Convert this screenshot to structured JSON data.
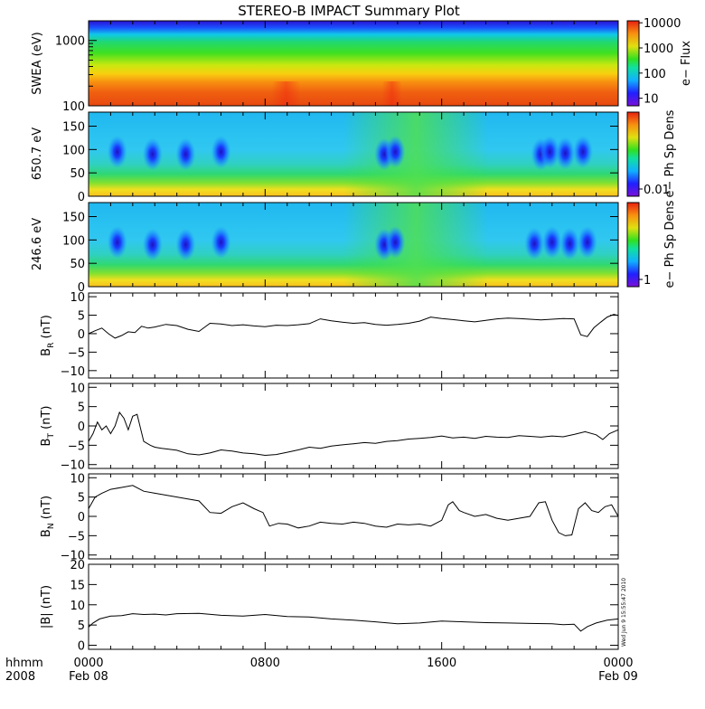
{
  "chart_data": [
    {
      "id": "swea",
      "type": "heatmap",
      "title": "STEREO-B IMPACT Summary Plot",
      "ylabel": "SWEA (eV)",
      "yscale": "log",
      "ylim": [
        100,
        2000
      ],
      "yticks": [
        {
          "v": 100,
          "label": "100"
        },
        {
          "v": 1000,
          "label": "1000"
        }
      ],
      "colorbar": {
        "label": "e− Flux",
        "scale": "log",
        "range": [
          5,
          12000
        ],
        "ticks": [
          {
            "v": 10000,
            "label": "10000"
          },
          {
            "v": 1000,
            "label": "1000"
          },
          {
            "v": 100,
            "label": "100"
          },
          {
            "v": 10,
            "label": "10"
          }
        ]
      },
      "hot_bands": [
        [
          8.3,
          9.6
        ],
        [
          13.3,
          14.2
        ]
      ]
    },
    {
      "id": "pad650",
      "type": "heatmap",
      "ylabel": "650.7 eV",
      "ylim": [
        0,
        180
      ],
      "yticks": [
        {
          "v": 0,
          "label": "0"
        },
        {
          "v": 50,
          "label": "50"
        },
        {
          "v": 100,
          "label": "100"
        },
        {
          "v": 150,
          "label": "150"
        }
      ],
      "colorbar": {
        "label": "e− Ph Sp Dens",
        "ticks": [
          {
            "v": 0.01,
            "label": "0.01"
          }
        ]
      },
      "blue_blobs": [
        [
          1.3,
          95
        ],
        [
          2.9,
          90
        ],
        [
          4.4,
          90
        ],
        [
          6.0,
          95
        ],
        [
          13.4,
          90
        ],
        [
          13.9,
          95
        ],
        [
          20.5,
          90
        ],
        [
          20.9,
          95
        ],
        [
          21.6,
          92
        ],
        [
          22.4,
          95
        ]
      ]
    },
    {
      "id": "pad246",
      "type": "heatmap",
      "ylabel": "246.6 eV",
      "ylim": [
        0,
        180
      ],
      "yticks": [
        {
          "v": 0,
          "label": "0"
        },
        {
          "v": 50,
          "label": "50"
        },
        {
          "v": 100,
          "label": "100"
        },
        {
          "v": 150,
          "label": "150"
        }
      ],
      "colorbar": {
        "label": "e− Ph Sp Dens",
        "ticks": [
          {
            "v": 1,
            "label": "1"
          }
        ]
      },
      "blue_blobs": [
        [
          1.3,
          95
        ],
        [
          2.9,
          90
        ],
        [
          4.4,
          90
        ],
        [
          6.0,
          95
        ],
        [
          13.4,
          90
        ],
        [
          13.9,
          95
        ],
        [
          20.2,
          92
        ],
        [
          21.0,
          95
        ],
        [
          21.8,
          92
        ],
        [
          22.6,
          95
        ]
      ]
    },
    {
      "id": "br",
      "type": "line",
      "ylabel": "B",
      "ylabel_sub": "R",
      "ylabel_unit": "(nT)",
      "ylim": [
        -12,
        11
      ],
      "yticks": [
        {
          "v": -10,
          "label": "−10"
        },
        {
          "v": -5,
          "label": "−5"
        },
        {
          "v": 0,
          "label": "0"
        },
        {
          "v": 5,
          "label": "5"
        },
        {
          "v": 10,
          "label": "10"
        }
      ],
      "x": [
        0,
        0.3,
        0.6,
        0.9,
        1.2,
        1.5,
        1.8,
        2.1,
        2.4,
        2.7,
        3.0,
        3.5,
        4.0,
        4.5,
        5.0,
        5.5,
        6.0,
        6.5,
        7.0,
        7.5,
        8.0,
        8.5,
        9.0,
        9.5,
        10.0,
        10.5,
        11.0,
        11.5,
        12.0,
        12.5,
        13.0,
        13.5,
        14.0,
        14.5,
        15.0,
        15.5,
        16.0,
        16.5,
        17.0,
        17.5,
        18.0,
        18.5,
        19.0,
        19.5,
        20.0,
        20.5,
        21.0,
        21.5,
        22.0,
        22.3,
        22.6,
        22.9,
        23.2,
        23.5,
        23.8,
        24.0
      ],
      "y": [
        0,
        0.8,
        1.5,
        0,
        -1.2,
        -0.5,
        0.5,
        0.3,
        2,
        1.5,
        1.8,
        2.5,
        2.2,
        1.2,
        0.6,
        2.8,
        2.6,
        2.2,
        2.4,
        2.1,
        1.9,
        2.3,
        2.2,
        2.4,
        2.7,
        4,
        3.5,
        3.1,
        2.8,
        3,
        2.5,
        2.3,
        2.5,
        2.8,
        3.4,
        4.5,
        4.1,
        3.8,
        3.5,
        3.2,
        3.6,
        4,
        4.2,
        4.1,
        3.9,
        3.7,
        3.9,
        4.1,
        4,
        -0.3,
        -0.8,
        1.6,
        3.1,
        4.5,
        5.2,
        4.9
      ]
    },
    {
      "id": "bt",
      "type": "line",
      "ylabel": "B",
      "ylabel_sub": "T",
      "ylabel_unit": "(nT)",
      "ylim": [
        -11,
        11
      ],
      "yticks": [
        {
          "v": -10,
          "label": "−10"
        },
        {
          "v": -5,
          "label": "−5"
        },
        {
          "v": 0,
          "label": "0"
        },
        {
          "v": 5,
          "label": "5"
        },
        {
          "v": 10,
          "label": "10"
        }
      ],
      "x": [
        0,
        0.2,
        0.4,
        0.6,
        0.8,
        1.0,
        1.2,
        1.4,
        1.6,
        1.8,
        2.0,
        2.2,
        2.5,
        2.8,
        3.0,
        3.3,
        3.6,
        4.0,
        4.5,
        5.0,
        5.5,
        6.0,
        6.5,
        7.0,
        7.5,
        8.0,
        8.5,
        9.0,
        9.5,
        10.0,
        10.5,
        11.0,
        11.5,
        12.0,
        12.5,
        13.0,
        13.5,
        14.0,
        14.5,
        15.0,
        15.5,
        16.0,
        16.5,
        17.0,
        17.5,
        18.0,
        18.5,
        19.0,
        19.5,
        20.0,
        20.5,
        21.0,
        21.5,
        22.0,
        22.5,
        23.0,
        23.3,
        23.6,
        24.0
      ],
      "y": [
        -4,
        -2,
        1,
        -1,
        0,
        -2,
        0,
        3.5,
        2,
        -1,
        2.5,
        3,
        -4,
        -5,
        -5.5,
        -5.8,
        -6,
        -6.3,
        -7.2,
        -7.5,
        -7,
        -6.2,
        -6.5,
        -7,
        -7.2,
        -7.6,
        -7.4,
        -6.8,
        -6.2,
        -5.5,
        -5.8,
        -5.2,
        -4.9,
        -4.6,
        -4.3,
        -4.5,
        -4,
        -3.8,
        -3.4,
        -3.2,
        -3,
        -2.6,
        -3.1,
        -2.9,
        -3.2,
        -2.7,
        -2.9,
        -3,
        -2.5,
        -2.7,
        -2.9,
        -2.6,
        -2.8,
        -2.2,
        -1.5,
        -2.3,
        -3.5,
        -2,
        -1
      ]
    },
    {
      "id": "bn",
      "type": "line",
      "ylabel": "B",
      "ylabel_sub": "N",
      "ylabel_unit": "(nT)",
      "ylim": [
        -11,
        11
      ],
      "yticks": [
        {
          "v": -10,
          "label": "−10"
        },
        {
          "v": -5,
          "label": "−5"
        },
        {
          "v": 0,
          "label": "0"
        },
        {
          "v": 5,
          "label": "5"
        },
        {
          "v": 10,
          "label": "10"
        }
      ],
      "x": [
        0,
        0.3,
        0.6,
        1.0,
        1.5,
        2.0,
        2.5,
        3.0,
        3.5,
        4.0,
        4.5,
        5.0,
        5.5,
        6.0,
        6.5,
        7.0,
        7.5,
        7.9,
        8.2,
        8.6,
        9.0,
        9.5,
        10.0,
        10.5,
        11.0,
        11.5,
        12.0,
        12.5,
        13.0,
        13.5,
        14.0,
        14.5,
        15.0,
        15.5,
        16.0,
        16.3,
        16.5,
        16.8,
        17.0,
        17.5,
        18.0,
        18.5,
        19.0,
        19.5,
        20.0,
        20.4,
        20.7,
        21.0,
        21.3,
        21.6,
        21.9,
        22.2,
        22.5,
        22.8,
        23.1,
        23.4,
        23.7,
        24.0
      ],
      "y": [
        2,
        5,
        6,
        7,
        7.5,
        8,
        6.5,
        6,
        5.5,
        5,
        4.5,
        4,
        1,
        0.8,
        2.5,
        3.5,
        2,
        1,
        -2.5,
        -1.8,
        -2,
        -3,
        -2.5,
        -1.5,
        -1.8,
        -2,
        -1.5,
        -1.8,
        -2.5,
        -2.8,
        -2,
        -2.2,
        -2,
        -2.5,
        -1,
        3,
        3.8,
        1.5,
        1,
        0,
        0.5,
        -0.5,
        -1,
        -0.5,
        0,
        3.5,
        3.8,
        -1,
        -4.2,
        -5,
        -4.8,
        2,
        3.5,
        1.5,
        1,
        2.5,
        3,
        0
      ]
    },
    {
      "id": "bmag",
      "type": "line",
      "ylabel": "|B| (nT)",
      "ylim": [
        -1,
        20
      ],
      "yticks": [
        {
          "v": 0,
          "label": "0"
        },
        {
          "v": 5,
          "label": "5"
        },
        {
          "v": 10,
          "label": "10"
        },
        {
          "v": 15,
          "label": "15"
        },
        {
          "v": 20,
          "label": "20"
        }
      ],
      "x": [
        0,
        0.2,
        0.5,
        1.0,
        1.5,
        2.0,
        2.5,
        3.0,
        3.5,
        4.0,
        5.0,
        6.0,
        7.0,
        8.0,
        9.0,
        10.0,
        11.0,
        12.0,
        13.0,
        14.0,
        15.0,
        16.0,
        17.0,
        18.0,
        19.0,
        20.0,
        21.0,
        21.5,
        22.0,
        22.3,
        22.6,
        23.0,
        23.5,
        24.0
      ],
      "y": [
        4.5,
        5.5,
        6.5,
        7.2,
        7.3,
        7.8,
        7.6,
        7.7,
        7.5,
        7.8,
        7.9,
        7.4,
        7.2,
        7.6,
        7.1,
        7,
        6.5,
        6.2,
        5.8,
        5.3,
        5.5,
        6,
        5.8,
        5.6,
        5.5,
        5.4,
        5.3,
        5.1,
        5.2,
        3.5,
        4.6,
        5.5,
        6.2,
        6.5
      ]
    }
  ],
  "xaxis": {
    "range": [
      0,
      24
    ],
    "ticks": [
      {
        "v": 0,
        "l1": "0000",
        "l2": "Feb 08"
      },
      {
        "v": 8,
        "l1": "0800",
        "l2": ""
      },
      {
        "v": 16,
        "l1": "1600",
        "l2": ""
      },
      {
        "v": 24,
        "l1": "0000",
        "l2": "Feb 09"
      }
    ],
    "label_top": "hhmm",
    "label_bottom": "2008"
  },
  "timestamp": "Wed Jun  9 15:55:47 2010",
  "colors": {
    "axis": "#000000"
  }
}
